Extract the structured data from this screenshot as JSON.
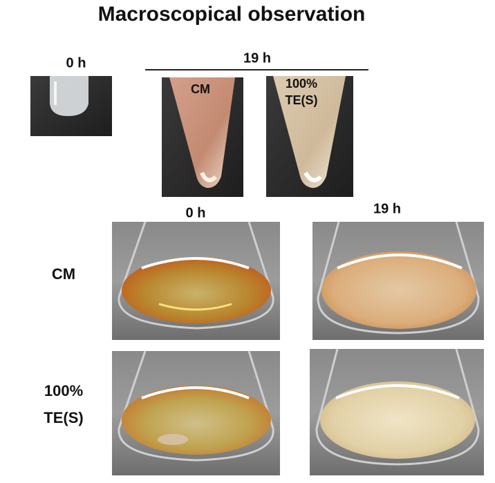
{
  "title": "Macroscopical observation",
  "tube_panel": {
    "time_0": "0 h",
    "time_19": "19 h",
    "tubes": [
      {
        "label_lines": [
          "CM"
        ]
      },
      {
        "label_lines": [
          "100%",
          "TE(S)"
        ]
      }
    ]
  },
  "flask_panel": {
    "columns": [
      "0 h",
      "19 h"
    ],
    "rows": [
      {
        "label_lines": [
          "CM"
        ]
      },
      {
        "label_lines": [
          "100%",
          "TE(S)"
        ]
      }
    ]
  }
}
